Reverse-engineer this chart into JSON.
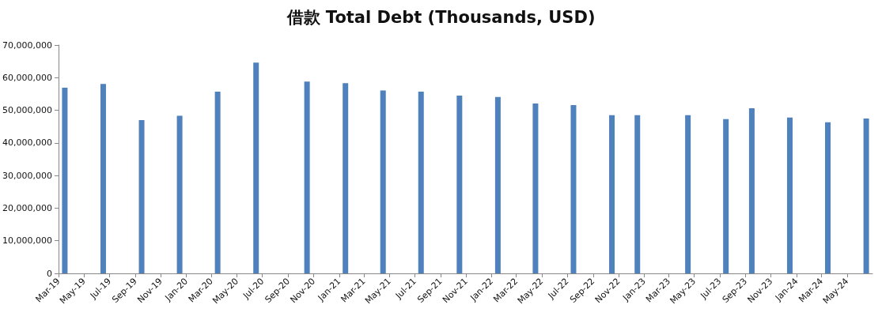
{
  "chart_data": {
    "type": "bar",
    "title": "借款 Total Debt (Thousands, USD)",
    "x": [
      "2019-03-16",
      "2019-06-16",
      "2019-09-16",
      "2019-12-16",
      "2020-03-16",
      "2020-06-16",
      "2020-10-16",
      "2021-01-16",
      "2021-04-16",
      "2021-07-16",
      "2021-10-16",
      "2022-01-16",
      "2022-04-16",
      "2022-07-16",
      "2022-10-16",
      "2022-12-16",
      "2023-04-16",
      "2023-07-16",
      "2023-09-16",
      "2023-12-16",
      "2024-03-16",
      "2024-06-16"
    ],
    "values": [
      56900000,
      58100000,
      47000000,
      48300000,
      55700000,
      64600000,
      58800000,
      58300000,
      56100000,
      55700000,
      54500000,
      54100000,
      52100000,
      51600000,
      48500000,
      48500000,
      48500000,
      47300000,
      50600000,
      47800000,
      46300000,
      47500000
    ],
    "color": "#4f81bd",
    "xlim": [
      "2019-03-01",
      "2024-07-01"
    ],
    "xticks": [
      {
        "value": "2019-03-01",
        "label": "Mar-19"
      },
      {
        "value": "2019-05-01",
        "label": "May-19"
      },
      {
        "value": "2019-07-01",
        "label": "Jul-19"
      },
      {
        "value": "2019-09-01",
        "label": "Sep-19"
      },
      {
        "value": "2019-11-01",
        "label": "Nov-19"
      },
      {
        "value": "2020-01-01",
        "label": "Jan-20"
      },
      {
        "value": "2020-03-01",
        "label": "Mar-20"
      },
      {
        "value": "2020-05-01",
        "label": "May-20"
      },
      {
        "value": "2020-07-01",
        "label": "Jul-20"
      },
      {
        "value": "2020-09-01",
        "label": "Sep-20"
      },
      {
        "value": "2020-11-01",
        "label": "Nov-20"
      },
      {
        "value": "2021-01-01",
        "label": "Jan-21"
      },
      {
        "value": "2021-03-01",
        "label": "Mar-21"
      },
      {
        "value": "2021-05-01",
        "label": "May-21"
      },
      {
        "value": "2021-07-01",
        "label": "Jul-21"
      },
      {
        "value": "2021-09-01",
        "label": "Sep-21"
      },
      {
        "value": "2021-11-01",
        "label": "Nov-21"
      },
      {
        "value": "2022-01-01",
        "label": "Jan-22"
      },
      {
        "value": "2022-03-01",
        "label": "Mar-22"
      },
      {
        "value": "2022-05-01",
        "label": "May-22"
      },
      {
        "value": "2022-07-01",
        "label": "Jul-22"
      },
      {
        "value": "2022-09-01",
        "label": "Sep-22"
      },
      {
        "value": "2022-11-01",
        "label": "Nov-22"
      },
      {
        "value": "2023-01-01",
        "label": "Jan-23"
      },
      {
        "value": "2023-03-01",
        "label": "Mar-23"
      },
      {
        "value": "2023-05-01",
        "label": "May-23"
      },
      {
        "value": "2023-07-01",
        "label": "Jul-23"
      },
      {
        "value": "2023-09-01",
        "label": "Sep-23"
      },
      {
        "value": "2023-11-01",
        "label": "Nov-23"
      },
      {
        "value": "2024-01-01",
        "label": "Jan-24"
      },
      {
        "value": "2024-03-01",
        "label": "Mar-24"
      },
      {
        "value": "2024-05-01",
        "label": "May-24"
      }
    ],
    "ylim": [
      0,
      70000000
    ],
    "yticks": [
      0,
      {
        "value": 10000000,
        "label": "10,000,000"
      },
      {
        "value": 20000000,
        "label": "20,000,000"
      },
      {
        "value": 30000000,
        "label": "30,000,000"
      },
      {
        "value": 40000000,
        "label": "40,000,000"
      },
      {
        "value": 50000000,
        "label": "50,000,000"
      },
      {
        "value": 60000000,
        "label": "60,000,000"
      },
      {
        "value": 70000000,
        "label": "70,000,000"
      }
    ],
    "grid": false
  }
}
